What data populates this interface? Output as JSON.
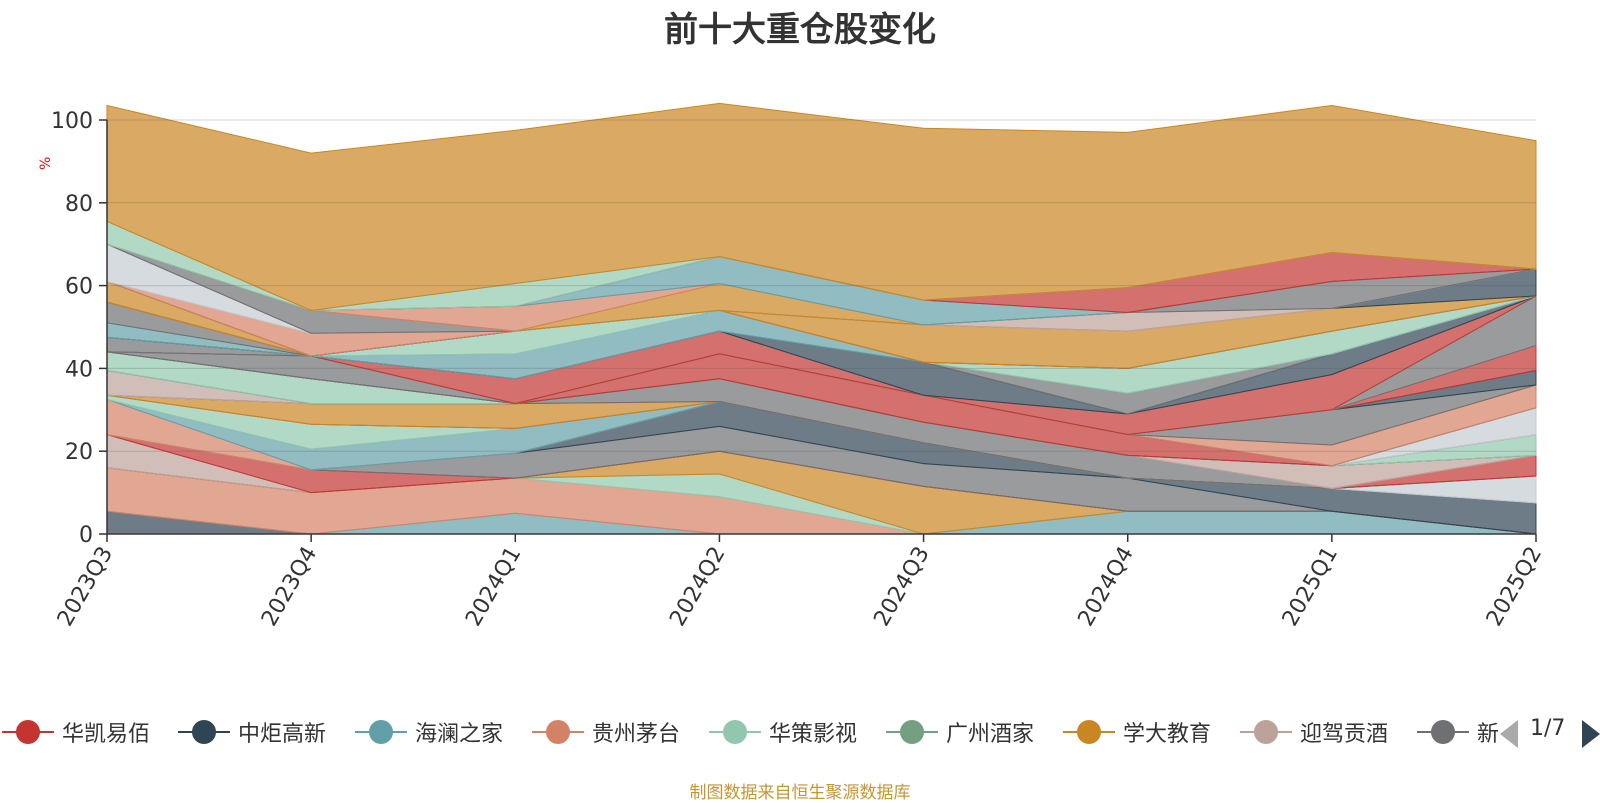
{
  "title": "前十大重仓股变化",
  "source": "制图数据来自恒生聚源数据库",
  "pager": {
    "text": "1/7"
  },
  "chart_data": {
    "type": "area",
    "stacked": true,
    "categories": [
      "2023Q3",
      "2023Q4",
      "2024Q1",
      "2024Q2",
      "2024Q3",
      "2024Q4",
      "2025Q1",
      "2025Q2"
    ],
    "ylabel": "%",
    "ylim": [
      0,
      100
    ],
    "yticks": [
      0,
      20,
      40,
      60,
      80,
      100
    ],
    "grid": true,
    "legend_position": "bottom",
    "series": [
      {
        "color": "#2f4554",
        "values": [
          5.5,
          0,
          0,
          0,
          0,
          0,
          0,
          0
        ]
      },
      {
        "color": "#61a0a8",
        "values": [
          0,
          0,
          5,
          0,
          0,
          5.5,
          5.5,
          0
        ]
      },
      {
        "color": "#d48265",
        "values": [
          10.5,
          10,
          8.5,
          9,
          0,
          0,
          0,
          0
        ]
      },
      {
        "color": "#91c7ae",
        "values": [
          0,
          0,
          0,
          5.5,
          0,
          0,
          0,
          0
        ]
      },
      {
        "color": "#ca8622",
        "values": [
          0,
          0,
          0,
          5.5,
          11.5,
          0,
          0,
          0
        ]
      },
      {
        "color": "#c23531",
        "values": [
          0,
          0,
          0,
          0,
          0,
          0,
          0,
          0
        ]
      },
      {
        "color": "#bda29a",
        "values": [
          8,
          0,
          0,
          0,
          0,
          0,
          0,
          0
        ]
      },
      {
        "color": "#c23531",
        "values": [
          0,
          5.5,
          0,
          0,
          0,
          0,
          0,
          0
        ]
      },
      {
        "color": "#6e7074",
        "values": [
          0,
          0,
          6,
          6,
          5.5,
          8,
          0,
          0
        ]
      },
      {
        "color": "#2f4554",
        "values": [
          0,
          0,
          0,
          6,
          5,
          0,
          5.5,
          7.5
        ]
      },
      {
        "color": "#c4ccd3",
        "values": [
          0,
          0,
          0,
          0,
          0,
          0,
          0,
          6.5
        ]
      },
      {
        "color": "#d48265",
        "values": [
          8.5,
          0,
          0,
          0,
          0,
          0,
          0,
          0
        ]
      },
      {
        "color": "#61a0a8",
        "values": [
          0,
          5,
          6,
          0,
          0,
          0,
          0,
          0
        ]
      },
      {
        "color": "#91c7ae",
        "values": [
          1,
          6,
          0,
          0,
          0,
          0,
          0,
          0
        ]
      },
      {
        "color": "#c23531",
        "values": [
          0,
          0,
          0,
          0,
          0,
          0,
          0,
          5
        ]
      },
      {
        "color": "#ca8622",
        "values": [
          0,
          5,
          6,
          0,
          0,
          0,
          0,
          0
        ]
      },
      {
        "color": "#6e7074",
        "values": [
          0,
          0,
          0,
          5.5,
          5,
          5.5,
          0,
          0
        ]
      },
      {
        "color": "#2f4554",
        "values": [
          0,
          0,
          0,
          0,
          0,
          0,
          0,
          0
        ]
      },
      {
        "color": "#c4ccd3",
        "values": [
          0,
          0,
          0,
          0,
          0,
          0,
          0,
          0
        ]
      },
      {
        "color": "#bda29a",
        "values": [
          6,
          0,
          0,
          0,
          0,
          0,
          5.5,
          0
        ]
      },
      {
        "color": "#2f4554",
        "values": [
          0,
          0,
          0,
          0,
          0,
          0,
          0,
          0
        ]
      },
      {
        "color": "#91c7ae",
        "values": [
          4.5,
          6,
          0,
          0,
          0,
          0,
          0,
          5
        ]
      },
      {
        "color": "#61a0a8",
        "values": [
          0,
          0,
          0,
          0,
          0,
          0,
          0,
          0
        ]
      },
      {
        "color": "#c23531",
        "values": [
          0,
          0,
          0,
          6,
          6.5,
          5,
          0,
          0
        ]
      },
      {
        "color": "#c4ccd3",
        "values": [
          0,
          0,
          0,
          0,
          0,
          0,
          0,
          6.5
        ]
      },
      {
        "color": "#2f4554",
        "values": [
          0,
          0,
          0,
          0,
          0,
          0,
          0,
          0
        ]
      },
      {
        "color": "#d48265",
        "values": [
          0,
          0,
          0,
          0,
          0,
          0,
          5,
          5.5
        ]
      },
      {
        "color": "#6e7074",
        "values": [
          0,
          5.5,
          0,
          0,
          0,
          0,
          8.5,
          0
        ]
      },
      {
        "color": "#2f4554",
        "values": [
          0,
          0,
          0,
          0,
          0,
          0,
          0,
          3.5
        ]
      },
      {
        "color": "#c23531",
        "values": [
          0,
          0,
          0,
          0,
          0,
          0,
          0,
          6
        ]
      },
      {
        "color": "#6e7074",
        "values": [
          0,
          0,
          0,
          0,
          0,
          0,
          0,
          0
        ]
      },
      {
        "color": "#c4ccd3",
        "values": [
          0,
          0,
          0,
          0,
          0,
          0,
          0,
          0
        ]
      },
      {
        "color": "#d48265",
        "values": [
          0,
          0,
          0,
          0,
          0,
          0,
          0,
          0
        ]
      },
      {
        "color": "#6e7074",
        "values": [
          3.5,
          0,
          0,
          0,
          0,
          0,
          0,
          12
        ]
      },
      {
        "color": "#91c7ae",
        "values": [
          0,
          0,
          0,
          0,
          0,
          0,
          0,
          0
        ]
      },
      {
        "color": "#c23531",
        "values": [
          0,
          0,
          6,
          5.5,
          0,
          5,
          8.5,
          0
        ]
      },
      {
        "color": "#61a0a8",
        "values": [
          0,
          0,
          0,
          0,
          0,
          0,
          0,
          0
        ]
      },
      {
        "color": "#2f4554",
        "values": [
          0,
          0,
          0,
          0,
          8,
          0,
          5,
          0
        ]
      },
      {
        "color": "#6e7074",
        "values": [
          0,
          0,
          0,
          0,
          0,
          5,
          0,
          0
        ]
      },
      {
        "color": "#61a0a8",
        "values": [
          3.5,
          0,
          6,
          5,
          0,
          0,
          0,
          0
        ]
      },
      {
        "color": "#91c7ae",
        "values": [
          0,
          0,
          5.5,
          0,
          0,
          6,
          5.5,
          0
        ]
      },
      {
        "color": "#6e7074",
        "values": [
          5,
          0,
          0,
          0,
          0,
          0,
          0,
          0
        ]
      },
      {
        "color": "#91c7ae",
        "values": [
          0,
          0,
          0,
          0,
          0,
          0,
          0,
          0
        ]
      },
      {
        "color": "#c23531",
        "values": [
          0,
          0,
          0,
          0,
          0,
          0,
          0,
          0
        ]
      },
      {
        "color": "#ca8622",
        "values": [
          5,
          0,
          0,
          0,
          9,
          9,
          5.5,
          0
        ]
      },
      {
        "color": "#2f4554",
        "values": [
          0,
          0,
          0,
          0,
          0,
          0,
          0,
          6.5
        ]
      },
      {
        "color": "#d48265",
        "values": [
          0,
          5.5,
          0,
          0,
          0,
          0,
          0,
          0
        ]
      },
      {
        "color": "#c4ccd3",
        "values": [
          9,
          0,
          0,
          0,
          0,
          0,
          0,
          0
        ]
      },
      {
        "color": "#bda29a",
        "values": [
          0,
          0,
          0,
          0,
          0,
          4.5,
          0,
          0
        ]
      },
      {
        "color": "#6e7074",
        "values": [
          0,
          5.5,
          0,
          0,
          0,
          0,
          6.5,
          0
        ]
      },
      {
        "color": "#91c7ae",
        "values": [
          0,
          0,
          0,
          0,
          0,
          0,
          0,
          0
        ]
      },
      {
        "color": "#ca8622",
        "values": [
          0,
          0,
          0,
          6.5,
          0,
          0,
          0,
          0
        ]
      },
      {
        "color": "#d48265",
        "values": [
          0,
          0,
          6,
          0,
          0,
          0,
          0,
          0
        ]
      },
      {
        "color": "#61a0a8",
        "values": [
          0,
          0,
          0,
          6.5,
          6,
          0,
          0,
          0
        ]
      },
      {
        "color": "#c23531",
        "values": [
          0,
          0,
          0,
          0,
          0,
          6,
          7,
          0
        ]
      },
      {
        "color": "#91c7ae",
        "values": [
          5.5,
          0,
          5.5,
          0,
          0,
          0,
          0,
          0
        ]
      },
      {
        "color": "#ca8622",
        "values": [
          28,
          38,
          37,
          37,
          41.5,
          37.5,
          35.5,
          31
        ]
      }
    ],
    "legend": [
      {
        "name": "华凯易佰",
        "color": "#c23531"
      },
      {
        "name": "中炬高新",
        "color": "#2f4554"
      },
      {
        "name": "海澜之家",
        "color": "#61a0a8"
      },
      {
        "name": "贵州茅台",
        "color": "#d48265"
      },
      {
        "name": "华策影视",
        "color": "#91c7ae"
      },
      {
        "name": "广州酒家",
        "color": "#749f83"
      },
      {
        "name": "学大教育",
        "color": "#ca8622"
      },
      {
        "name": "迎驾贡酒",
        "color": "#bda29a"
      },
      {
        "name": "新",
        "color": "#6e7074"
      }
    ]
  }
}
